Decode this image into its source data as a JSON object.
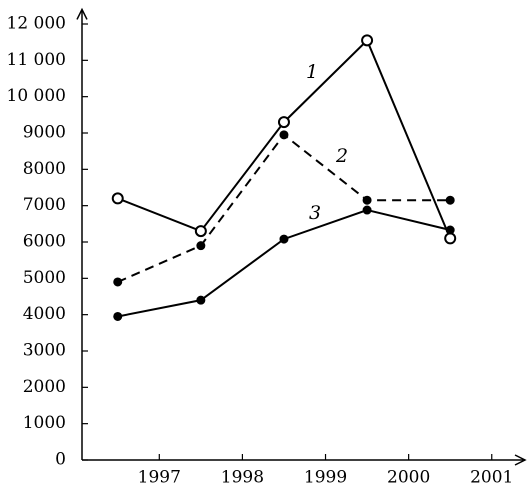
{
  "chart_data": {
    "type": "line",
    "x": [
      1996.5,
      1997.5,
      1998.5,
      1999.5,
      2000.5
    ],
    "series": [
      {
        "name": "1",
        "color": "#000000",
        "marker": "open",
        "dashed": false,
        "values": [
          7200,
          6300,
          9300,
          11550,
          6100
        ]
      },
      {
        "name": "2",
        "color": "#000000",
        "marker": "filled",
        "dashed": true,
        "values": [
          4900,
          5900,
          8950,
          7150,
          7150
        ]
      },
      {
        "name": "3",
        "color": "#000000",
        "marker": "filled",
        "dashed": false,
        "values": [
          3950,
          4400,
          6080,
          6880,
          6330
        ]
      }
    ],
    "xlim": [
      1996.07,
      2001.4
    ],
    "xticks": [
      1997,
      1998,
      1999,
      2000,
      2001
    ],
    "ylim": [
      0,
      12400
    ],
    "yticks": [
      0,
      1000,
      2000,
      3000,
      4000,
      5000,
      6000,
      7000,
      8000,
      9000,
      {
        "value": 10000,
        "label": "10 000"
      },
      {
        "value": 11000,
        "label": "11 000"
      },
      {
        "value": 12000,
        "label": "12 000"
      }
    ],
    "grid": false
  }
}
